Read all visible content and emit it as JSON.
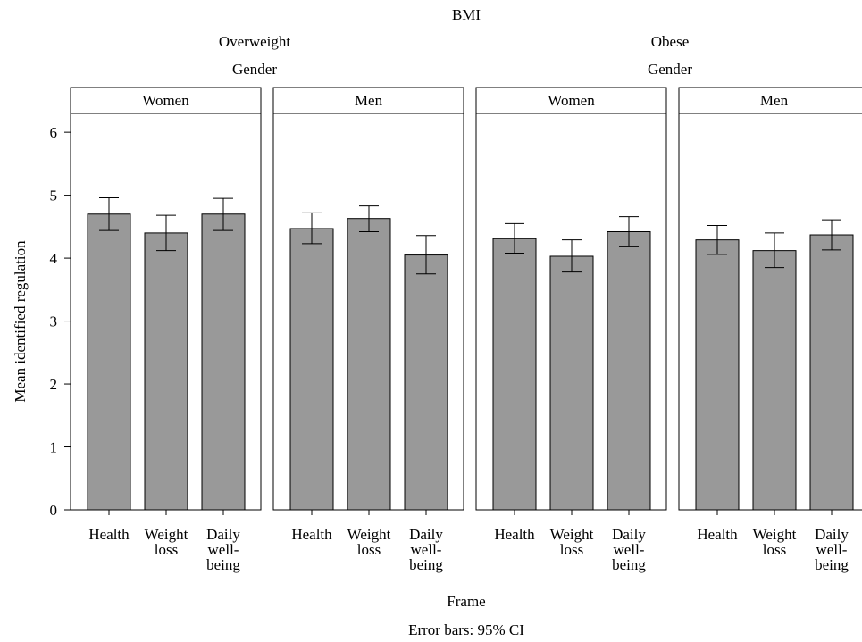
{
  "header": {
    "top_title": "BMI",
    "groups": [
      {
        "label": "Overweight",
        "sublabel": "Gender"
      },
      {
        "label": "Obese",
        "sublabel": "Gender"
      }
    ]
  },
  "footer": {
    "xlabel": "Frame",
    "note": "Error bars: 95% CI"
  },
  "chart_data": {
    "type": "bar",
    "title": "BMI",
    "xlabel": "Frame",
    "ylabel": "Mean identified regulation",
    "ylim": [
      0,
      6.3
    ],
    "yticks": [
      0,
      1,
      2,
      3,
      4,
      5,
      6
    ],
    "grid": false,
    "bar_color": "#999999",
    "categories": [
      [
        "Health"
      ],
      [
        "Weight",
        "loss"
      ],
      [
        "Daily",
        "well-",
        "being"
      ]
    ],
    "panels": [
      {
        "bmi": "Overweight",
        "gender": "Women",
        "values": [
          4.7,
          4.4,
          4.7
        ],
        "ci_low": [
          4.44,
          4.12,
          4.44
        ],
        "ci_high": [
          4.96,
          4.68,
          4.95
        ]
      },
      {
        "bmi": "Overweight",
        "gender": "Men",
        "values": [
          4.47,
          4.63,
          4.05
        ],
        "ci_low": [
          4.23,
          4.42,
          3.75
        ],
        "ci_high": [
          4.72,
          4.83,
          4.36
        ]
      },
      {
        "bmi": "Obese",
        "gender": "Women",
        "values": [
          4.31,
          4.03,
          4.42
        ],
        "ci_low": [
          4.08,
          3.78,
          4.18
        ],
        "ci_high": [
          4.55,
          4.29,
          4.66
        ]
      },
      {
        "bmi": "Obese",
        "gender": "Men",
        "values": [
          4.29,
          4.12,
          4.37
        ],
        "ci_low": [
          4.06,
          3.85,
          4.13
        ],
        "ci_high": [
          4.52,
          4.4,
          4.61
        ]
      }
    ],
    "error_bars": "95% CI"
  }
}
